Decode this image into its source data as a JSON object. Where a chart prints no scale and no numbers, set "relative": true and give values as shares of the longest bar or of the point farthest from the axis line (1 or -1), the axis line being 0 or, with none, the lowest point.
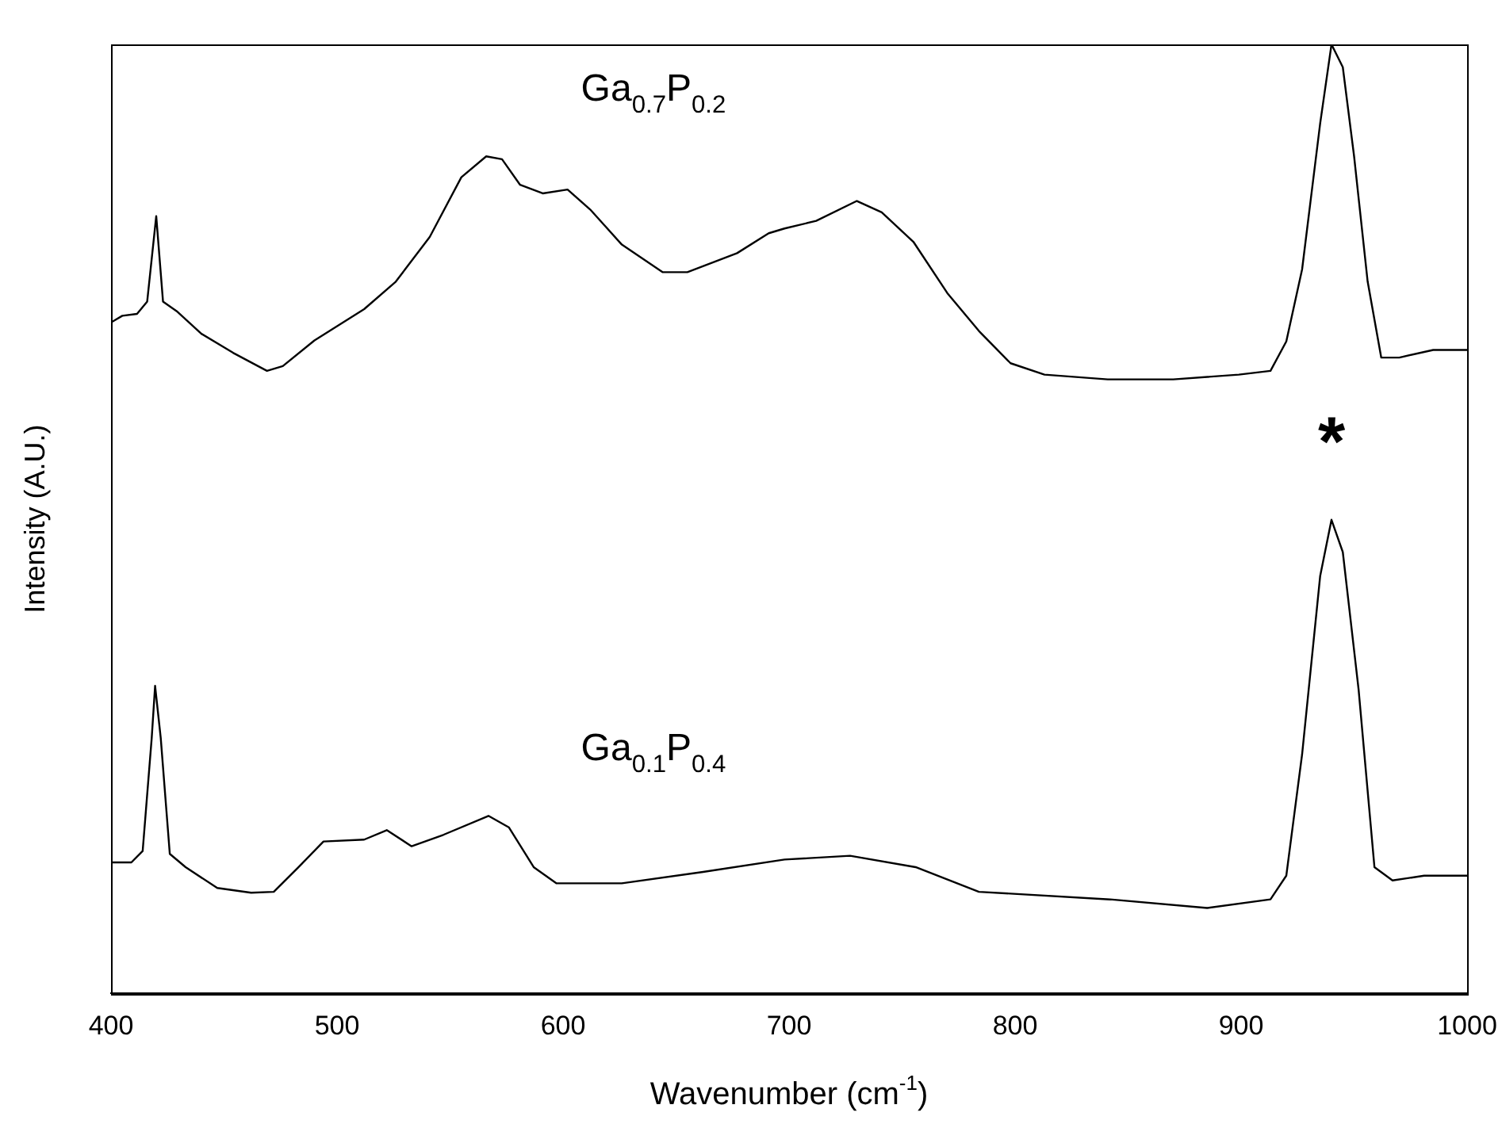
{
  "chart_data": {
    "type": "line",
    "xlabel": "Wavenumber (cm$^{-1}$)",
    "ylabel": "Intensity (A.U.)",
    "relative": true,
    "xlim": [
      400,
      1000
    ],
    "xticks": [
      400,
      500,
      600,
      700,
      800,
      900,
      1000
    ],
    "grid": false,
    "legend": false,
    "marker": "none",
    "line_style": "solid",
    "annotations": [
      "*"
    ],
    "series": [
      {
        "name": "Ga$_{0.7}$P$_{0.2}$",
        "color": "#000000",
        "x": [
          400,
          405,
          411.5,
          416,
          420,
          423,
          429,
          440,
          454,
          469,
          476,
          490,
          512,
          526,
          541,
          555,
          566,
          573,
          581,
          591,
          602,
          612,
          626,
          644,
          655,
          677,
          691,
          698,
          712,
          730,
          741,
          755,
          770,
          784,
          798,
          813,
          841,
          870,
          899,
          913,
          920,
          927,
          935,
          940,
          945,
          950,
          956,
          962,
          970,
          985,
          1000
        ],
        "values": [
          0.707,
          0.714,
          0.716,
          0.729,
          0.819,
          0.729,
          0.719,
          0.695,
          0.675,
          0.656,
          0.661,
          0.688,
          0.721,
          0.75,
          0.797,
          0.86,
          0.882,
          0.879,
          0.852,
          0.843,
          0.847,
          0.826,
          0.789,
          0.76,
          0.76,
          0.78,
          0.801,
          0.806,
          0.814,
          0.835,
          0.823,
          0.792,
          0.738,
          0.698,
          0.664,
          0.652,
          0.647,
          0.647,
          0.652,
          0.656,
          0.687,
          0.763,
          0.917,
          1,
          0.976,
          0.882,
          0.75,
          0.67,
          0.67,
          0.678,
          0.678
        ]
      },
      {
        "name": "Ga$_{0.1}$P$_{0.4}$",
        "color": "#000000",
        "x": [
          400,
          409,
          414,
          418,
          419.5,
          422,
          426,
          433,
          447,
          462,
          472,
          483,
          494,
          512,
          522,
          533,
          547,
          567,
          576,
          587,
          597,
          626,
          662,
          698,
          727,
          756,
          784,
          842,
          885,
          913,
          920,
          927,
          935,
          940,
          945,
          952,
          959,
          967,
          981,
          1000
        ],
        "values": [
          0.138,
          0.138,
          0.15,
          0.269,
          0.324,
          0.269,
          0.147,
          0.133,
          0.111,
          0.106,
          0.107,
          0.133,
          0.16,
          0.162,
          0.172,
          0.155,
          0.167,
          0.187,
          0.175,
          0.133,
          0.116,
          0.116,
          0.128,
          0.141,
          0.145,
          0.133,
          0.107,
          0.099,
          0.09,
          0.099,
          0.124,
          0.252,
          0.44,
          0.499,
          0.465,
          0.32,
          0.133,
          0.119,
          0.124,
          0.124
        ]
      }
    ]
  }
}
